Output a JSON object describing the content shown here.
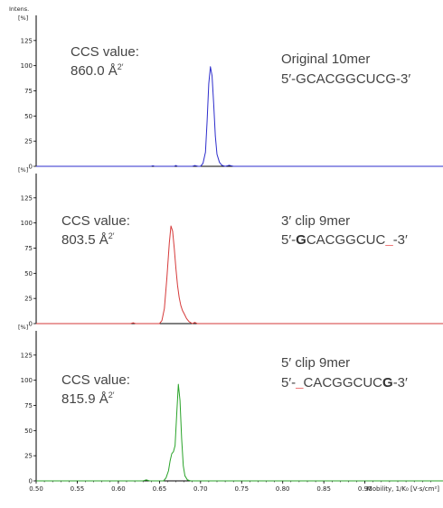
{
  "chart_data": {
    "type": "line",
    "y_axis_title": "Intens.",
    "y_unit": "[%]",
    "x_axis_label": "Mobility, 1/K₀ [V·s/cm²]",
    "x_range": [
      0.5,
      0.995
    ],
    "y_range": [
      0,
      150
    ],
    "x_ticks": [
      "0.50",
      "0.55",
      "0.60",
      "0.65",
      "0.70",
      "0.75",
      "0.80",
      "0.85",
      "0.90"
    ],
    "y_ticks": [
      "0",
      "25",
      "50",
      "75",
      "100",
      "125"
    ],
    "colors": {
      "original": "#2d2dcc",
      "clip3": "#d63a3a",
      "clip5": "#29a329",
      "highlight": "#e01010",
      "axis": "#000000",
      "text": "#444444"
    },
    "panels": [
      {
        "key": "original",
        "ccs_label": "CCS value:",
        "ccs_value": "860.0",
        "ccs_unit": "Å",
        "ccs_sup": "2′",
        "name": "Original 10mer",
        "seq_prefix": "5′-",
        "seq_head": "G",
        "seq_body": "CACGGCUC",
        "seq_tail": "G",
        "seq_suffix": "-3′",
        "x": [
          0.5,
          0.64,
          0.642,
          0.644,
          0.66,
          0.668,
          0.67,
          0.672,
          0.69,
          0.693,
          0.697,
          0.7,
          0.703,
          0.706,
          0.708,
          0.71,
          0.712,
          0.714,
          0.716,
          0.718,
          0.72,
          0.723,
          0.726,
          0.73,
          0.735,
          0.74,
          0.745,
          0.75,
          0.995
        ],
        "y": [
          0,
          0,
          0.6,
          0,
          0,
          0,
          0.8,
          0,
          0,
          0.8,
          0,
          0,
          3,
          14,
          45,
          82,
          99,
          90,
          62,
          30,
          12,
          4,
          1,
          0,
          1,
          0,
          0,
          0,
          0
        ]
      },
      {
        "key": "clip3",
        "ccs_label": "CCS value:",
        "ccs_value": "803.5",
        "ccs_unit": "Å",
        "ccs_sup": "2′",
        "name": "3′ clip 9mer",
        "seq_prefix": "5′-",
        "seq_head": "G",
        "seq_body": "CACGGCUC",
        "seq_tail": "_",
        "seq_suffix": "-3′",
        "x": [
          0.5,
          0.615,
          0.618,
          0.621,
          0.65,
          0.653,
          0.656,
          0.659,
          0.662,
          0.664,
          0.666,
          0.668,
          0.67,
          0.672,
          0.674,
          0.676,
          0.678,
          0.68,
          0.683,
          0.686,
          0.69,
          0.693,
          0.696,
          0.7,
          0.995
        ],
        "y": [
          0,
          0,
          0.8,
          0,
          0,
          3,
          15,
          45,
          80,
          97,
          92,
          75,
          55,
          38,
          26,
          18,
          13,
          10,
          5,
          2,
          0,
          1.2,
          0,
          0,
          0
        ]
      },
      {
        "key": "clip5",
        "ccs_label": "CCS value:",
        "ccs_value": "815.9",
        "ccs_unit": "Å",
        "ccs_sup": "2′",
        "name": "5′ clip 9mer",
        "seq_prefix": "5′-",
        "seq_head": "_",
        "seq_body": "CACGGCUC",
        "seq_tail": "G",
        "seq_suffix": "-3′",
        "x": [
          0.5,
          0.63,
          0.634,
          0.638,
          0.655,
          0.658,
          0.661,
          0.663,
          0.665,
          0.667,
          0.669,
          0.671,
          0.673,
          0.675,
          0.677,
          0.679,
          0.681,
          0.684,
          0.688,
          0.692,
          0.995
        ],
        "y": [
          0,
          0,
          1,
          0,
          0,
          3,
          10,
          20,
          27,
          29,
          35,
          66,
          96,
          80,
          42,
          15,
          5,
          1,
          0,
          0,
          0
        ]
      }
    ]
  }
}
